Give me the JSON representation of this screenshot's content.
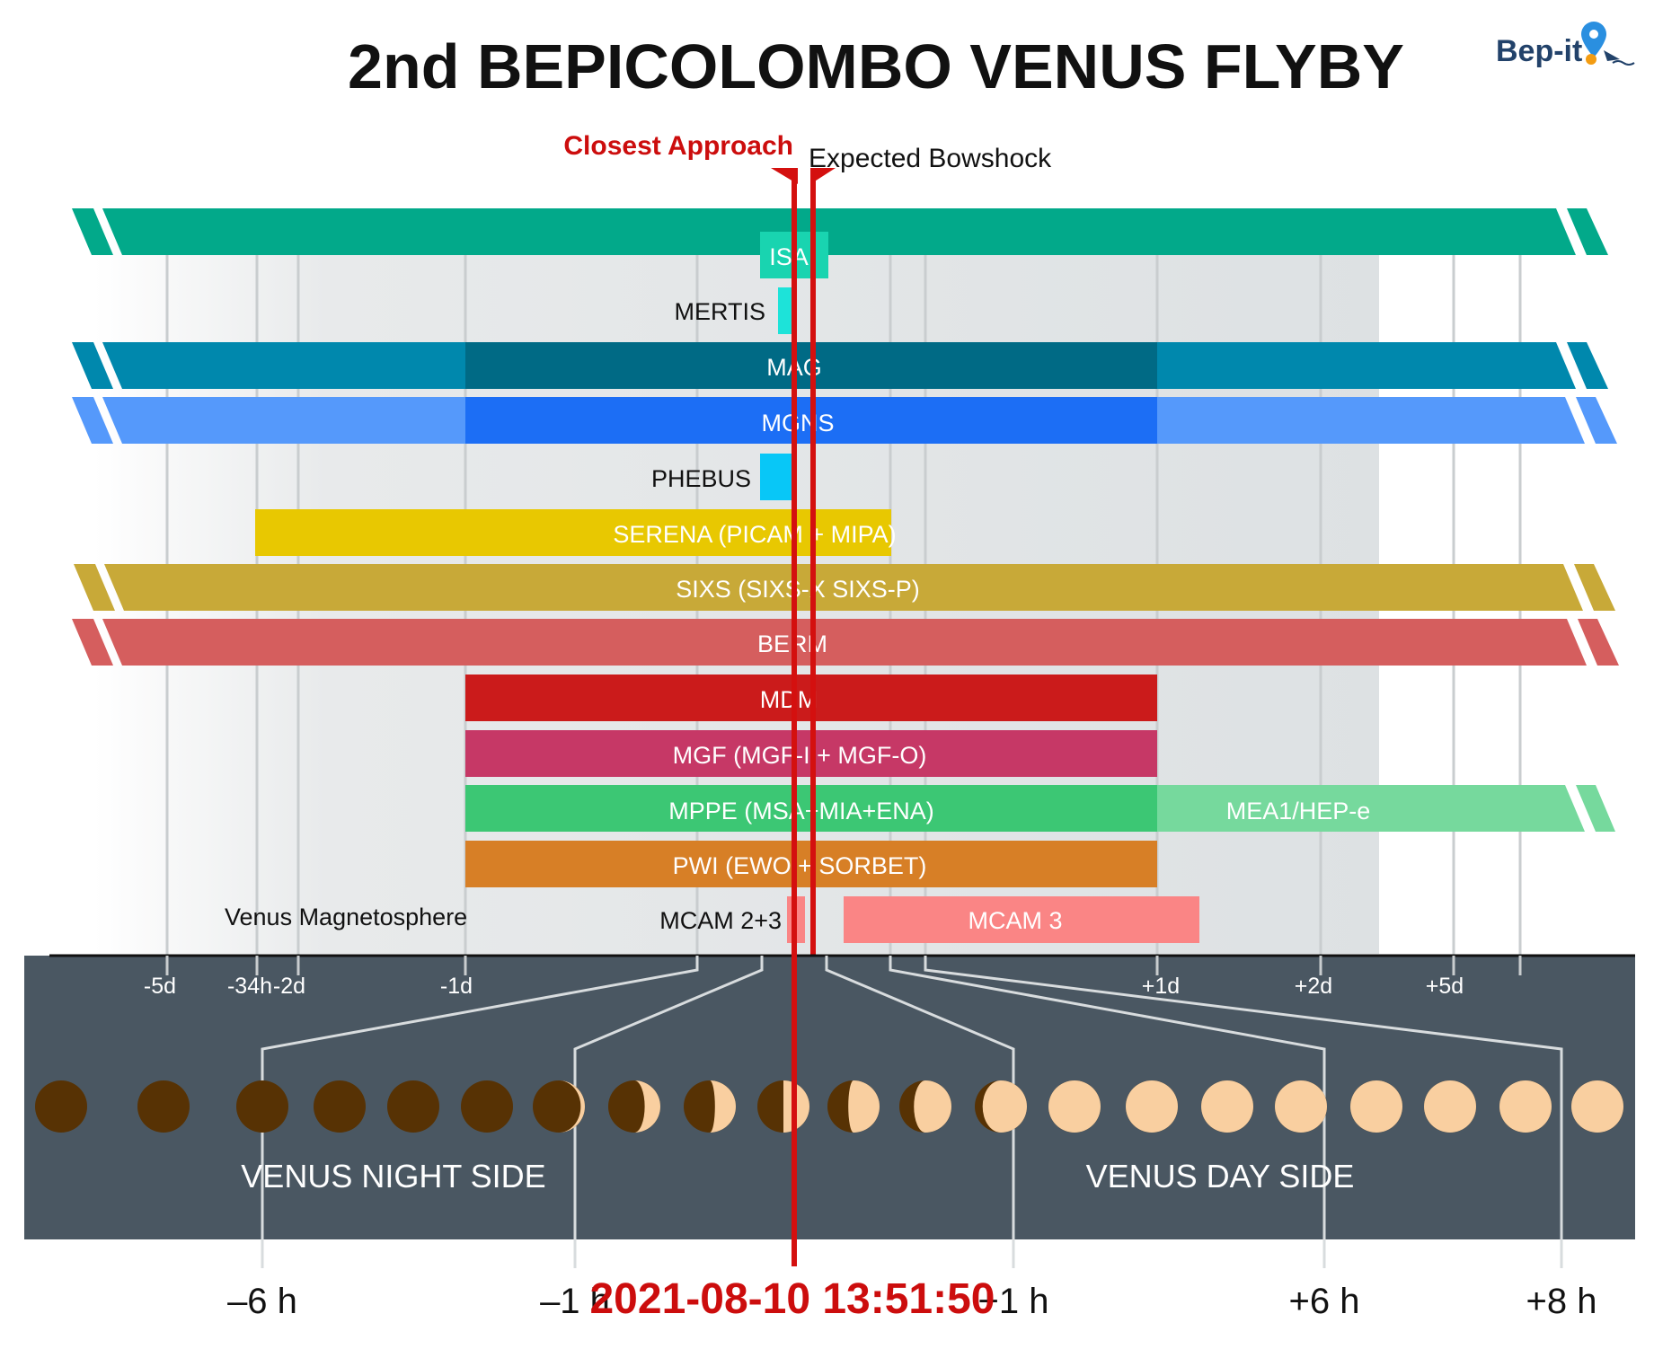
{
  "title": "2nd BEPICOLOMBO VENUS FLYBY",
  "logo": {
    "text": "Bep-it",
    "icon": "location-pin-icon"
  },
  "markers": {
    "closest_approach": "Closest Approach",
    "bowshock": "Expected Bowshock",
    "datetime": "2021-08-10 13:51:50"
  },
  "colors": {
    "ISA": "#02a98a",
    "ISA_active": "#19d4b0",
    "MERTIS": "#1de3d9",
    "MAG": "#0088ad",
    "MAG_active": "#006a85",
    "MGNS": "#5599fb",
    "MGNS_active": "#1c6ef5",
    "PHEBUS": "#08c7f7",
    "SERENA": "#e8c801",
    "SIXS": "#c8a938",
    "BERM": "#d55e5e",
    "MDM": "#cb1b1b",
    "MGF": "#c63866",
    "MPPE": "#3cc774",
    "MEA": "#76d99d",
    "PWI": "#d77f26",
    "MCAM": "#fa8585",
    "red": "#d4100f",
    "bottom_panel": "#4a5762",
    "night": "#573204",
    "day": "#f9cfa0"
  },
  "instruments": [
    {
      "name": "ISA"
    },
    {
      "name": "MERTIS"
    },
    {
      "name": "MAG"
    },
    {
      "name": "MGNS"
    },
    {
      "name": "PHEBUS"
    },
    {
      "name": "SERENA (PICAM + MIPA)"
    },
    {
      "name": "SIXS (SIXS-X  SIXS-P)"
    },
    {
      "name": "BERM"
    },
    {
      "name": "MDM"
    },
    {
      "name": "MGF (MGF-I + MGF-O)"
    },
    {
      "name": "MPPE (MSA+MIA+ENA)",
      "extension": "MEA1/HEP-e"
    },
    {
      "name": "PWI (EWO + SORBET)"
    },
    {
      "name": "MCAM 2+3",
      "extension": "MCAM 3"
    }
  ],
  "magnetosphere_label": "Venus Magnetosphere",
  "time_ticks": [
    "-5d",
    "-34h",
    "-2d",
    "-1d",
    "+1d",
    "+2d",
    "+5d"
  ],
  "side_labels": {
    "night": "VENUS NIGHT SIDE",
    "day": "VENUS DAY SIDE"
  },
  "hour_labels": [
    "–6 h",
    "–1 h",
    "+1 h",
    "+6 h",
    "+8 h"
  ],
  "phases": [
    0,
    0,
    0,
    0,
    0,
    0,
    0.08,
    0.3,
    0.4,
    0.5,
    0.6,
    0.72,
    0.85,
    1,
    1,
    1,
    1,
    1,
    1,
    1,
    1
  ]
}
